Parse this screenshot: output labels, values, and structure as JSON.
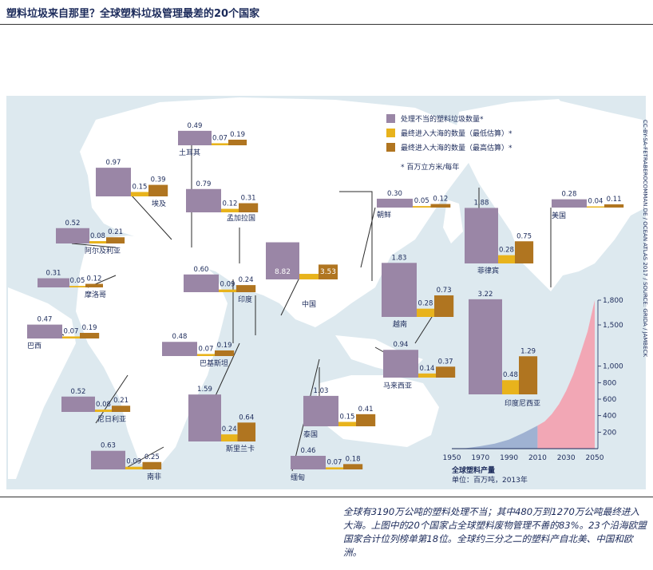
{
  "title": "塑料垃圾来自那里？全球塑料垃圾管理最差的20个国家",
  "caption": "全球有3190万公吨的塑料处理不当；其中480万到1270万公吨最终进入大海。上图中的20个国家占全球塑料废物管理不善的83%。23个沿海欧盟国家合计位列榜单第18位。全球约三分之二的塑料产自北美、中国和欧洲。",
  "source": "CC-BY-SA-FETRABEROCOMMAN.DE / OCEAN ATLAS 2017 / SOURCE: GRIDA / JAMBECK",
  "colors": {
    "mismanaged": "#9a86a6",
    "low": "#e8b31c",
    "high": "#b07520",
    "land": "#ffffff",
    "sea": "#dde9ef",
    "area_past": "#9fb2d2",
    "area_future": "#f2a7b5"
  },
  "legend": {
    "items": [
      "处理不当的塑料垃圾数量*",
      "最终进入大海的数量（最低估算）*",
      "最终进入大海的数量（最高估算）*"
    ],
    "note": "* 百万立方米/每年"
  },
  "chart_data": [
    {
      "type": "bar",
      "series_names": [
        "处理不当的塑料垃圾数量",
        "最终进入大海的数量（最低估算）",
        "最终进入大海的数量（最高估算）"
      ],
      "unit": "百万立方米/每年",
      "countries": [
        {
          "name": "中国",
          "values": [
            8.82,
            1.32,
            3.53
          ]
        },
        {
          "name": "印度尼西亚",
          "values": [
            3.22,
            0.48,
            1.29
          ]
        },
        {
          "name": "菲律宾",
          "values": [
            1.88,
            0.28,
            0.75
          ]
        },
        {
          "name": "越南",
          "values": [
            1.83,
            0.28,
            0.73
          ]
        },
        {
          "name": "斯里兰卡",
          "values": [
            1.59,
            0.24,
            0.64
          ]
        },
        {
          "name": "泰国",
          "values": [
            1.03,
            0.15,
            0.41
          ]
        },
        {
          "name": "埃及",
          "values": [
            0.97,
            0.15,
            0.39
          ]
        },
        {
          "name": "马来西亚",
          "values": [
            0.94,
            0.14,
            0.37
          ]
        },
        {
          "name": "尼日利亚",
          "values": [
            0.52,
            0.08,
            0.21
          ]
        },
        {
          "name": "孟加拉国",
          "values": [
            0.79,
            0.12,
            0.31
          ]
        },
        {
          "name": "南非",
          "values": [
            0.63,
            0.09,
            0.25
          ]
        },
        {
          "name": "印度",
          "values": [
            0.6,
            0.09,
            0.24
          ]
        },
        {
          "name": "阿尔及利亚",
          "values": [
            0.52,
            0.08,
            0.21
          ]
        },
        {
          "name": "土耳其",
          "values": [
            0.49,
            0.07,
            0.19
          ]
        },
        {
          "name": "巴基斯坦",
          "values": [
            0.48,
            0.07,
            0.19
          ]
        },
        {
          "name": "巴西",
          "values": [
            0.47,
            0.07,
            0.19
          ]
        },
        {
          "name": "缅甸",
          "values": [
            0.46,
            0.07,
            0.18
          ]
        },
        {
          "name": "摩洛哥",
          "values": [
            0.31,
            0.05,
            0.12
          ]
        },
        {
          "name": "朝鲜",
          "values": [
            0.3,
            0.05,
            0.12
          ]
        },
        {
          "name": "美国",
          "values": [
            0.28,
            0.04,
            0.11
          ]
        }
      ]
    },
    {
      "type": "area",
      "title": "全球塑料产量",
      "subtitle": "单位：百万吨，2013年",
      "x_ticks": [
        1950,
        1970,
        1990,
        2010,
        2030,
        2050
      ],
      "y_ticks": [
        200,
        400,
        600,
        800,
        1000,
        1500,
        1800
      ],
      "y_tick_labels": [
        "200",
        "400",
        "600",
        "800",
        "1,000",
        "1,500",
        "1,800"
      ],
      "x": [
        1950,
        1960,
        1970,
        1980,
        1990,
        2000,
        2010,
        2015,
        2020,
        2025,
        2030,
        2035,
        2040,
        2045,
        2050
      ],
      "y": [
        2,
        6,
        30,
        60,
        110,
        190,
        280,
        330,
        420,
        540,
        700,
        900,
        1150,
        1420,
        1800
      ]
    }
  ]
}
